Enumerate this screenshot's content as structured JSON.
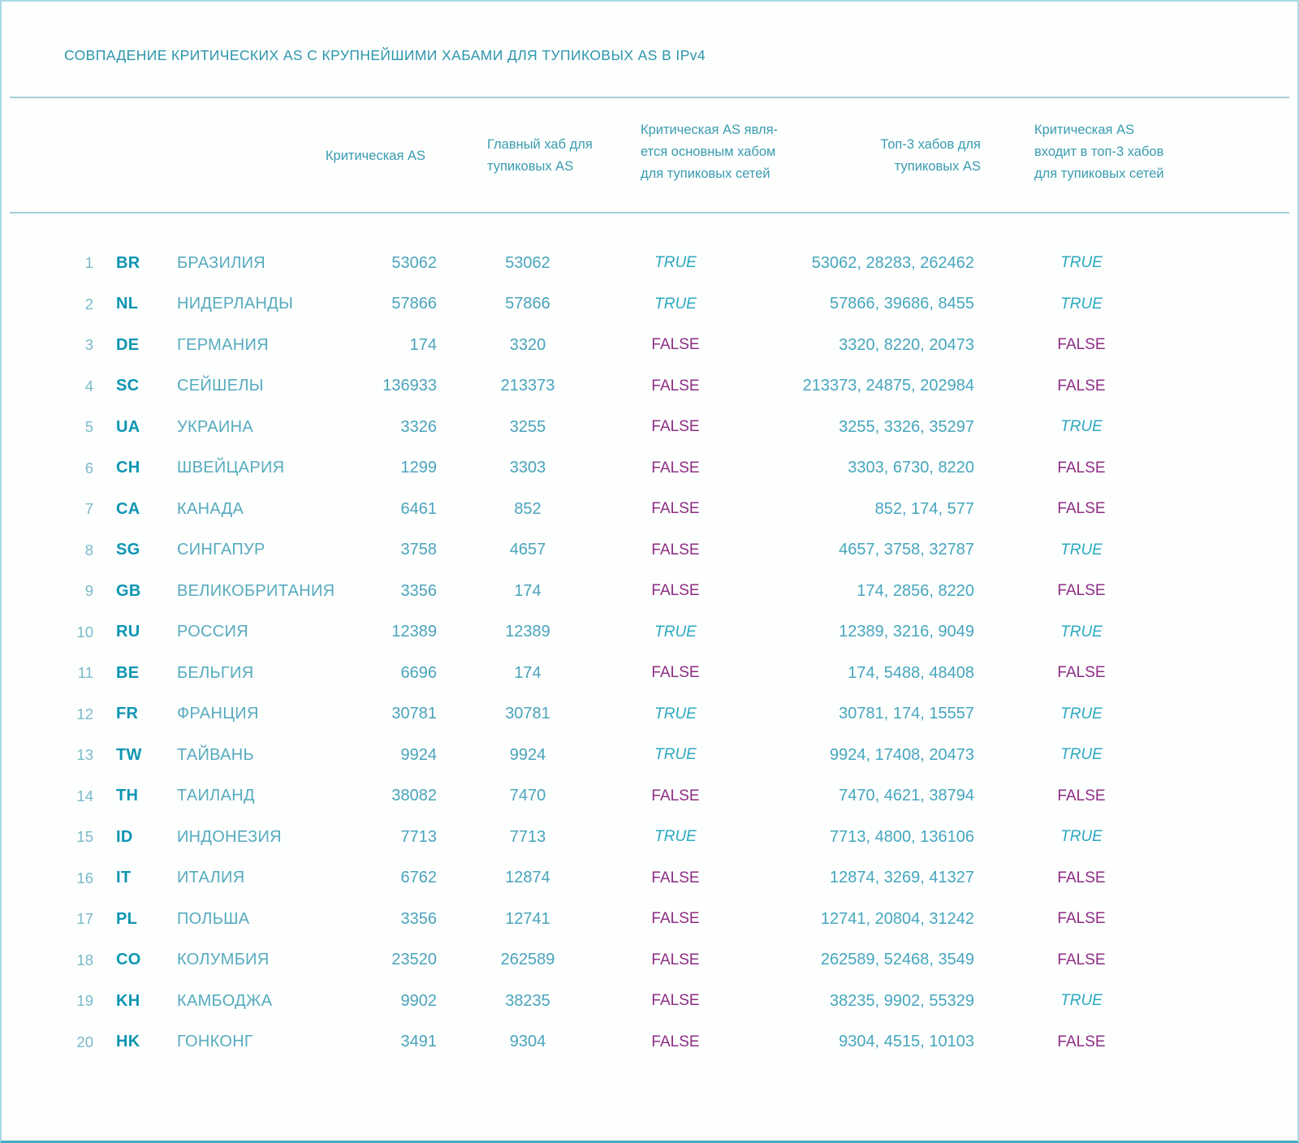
{
  "title": "СОВПАДЕНИЕ КРИТИЧЕСКИХ AS С КРУПНЕЙШИМИ ХАБАМИ ДЛЯ ТУПИКОВЫХ AS В IPv4",
  "colors": {
    "accent_teal": "#2d96ac",
    "code_teal": "#0d95b2",
    "value_teal": "#4aa4bc",
    "true_color": "#2ca9c0",
    "false_color": "#8e2d84",
    "rule_color": "#a3ccda",
    "border_color": "#a9d9e6",
    "border_bottom_color": "#43aec6"
  },
  "columns": {
    "critical_as": "Критическая AS",
    "main_hub": [
      "Главный хаб для",
      "тупиковых AS"
    ],
    "is_main_hub": [
      "Критическая AS явля-",
      "ется основным хабом",
      "для тупиковых сетей"
    ],
    "top3_hubs": [
      "Топ-3 хабов для",
      "тупиковых AS"
    ],
    "in_top3": [
      "Критическая AS",
      "входит в топ-3 хабов",
      "для тупиковых сетей"
    ]
  },
  "chart_data": {
    "type": "table",
    "title": "СОВПАДЕНИЕ КРИТИЧЕСКИХ AS С КРУПНЕЙШИМИ ХАБАМИ ДЛЯ ТУПИКОВЫХ AS В IPv4",
    "column_fields": [
      "rank",
      "country_code",
      "country_name",
      "critical_as",
      "main_hub_for_stub_as",
      "critical_as_is_main_hub",
      "top3_hubs_for_stub_as",
      "critical_as_in_top3_hubs"
    ],
    "rows": [
      [
        1,
        "BR",
        "БРАЗИЛИЯ",
        "53062",
        "53062",
        "TRUE",
        "53062, 28283, 262462",
        "TRUE"
      ],
      [
        2,
        "NL",
        "НИДЕРЛАНДЫ",
        "57866",
        "57866",
        "TRUE",
        "57866, 39686, 8455",
        "TRUE"
      ],
      [
        3,
        "DE",
        "ГЕРМАНИЯ",
        "174",
        "3320",
        "FALSE",
        "3320, 8220, 20473",
        "FALSE"
      ],
      [
        4,
        "SC",
        "СЕЙШЕЛЫ",
        "136933",
        "213373",
        "FALSE",
        "213373, 24875, 202984",
        "FALSE"
      ],
      [
        5,
        "UA",
        "УКРАИНА",
        "3326",
        "3255",
        "FALSE",
        "3255, 3326, 35297",
        "TRUE"
      ],
      [
        6,
        "CH",
        "ШВЕЙЦАРИЯ",
        "1299",
        "3303",
        "FALSE",
        "3303, 6730, 8220",
        "FALSE"
      ],
      [
        7,
        "CA",
        "КАНАДА",
        "6461",
        "852",
        "FALSE",
        "852, 174, 577",
        "FALSE"
      ],
      [
        8,
        "SG",
        "СИНГАПУР",
        "3758",
        "4657",
        "FALSE",
        "4657, 3758, 32787",
        "TRUE"
      ],
      [
        9,
        "GB",
        "ВЕЛИКОБРИТАНИЯ",
        "3356",
        "174",
        "FALSE",
        "174, 2856, 8220",
        "FALSE"
      ],
      [
        10,
        "RU",
        "РОССИЯ",
        "12389",
        "12389",
        "TRUE",
        "12389, 3216, 9049",
        "TRUE"
      ],
      [
        11,
        "BE",
        "БЕЛЬГИЯ",
        "6696",
        "174",
        "FALSE",
        "174, 5488, 48408",
        "FALSE"
      ],
      [
        12,
        "FR",
        "ФРАНЦИЯ",
        "30781",
        "30781",
        "TRUE",
        "30781, 174, 15557",
        "TRUE"
      ],
      [
        13,
        "TW",
        "ТАЙВАНЬ",
        "9924",
        "9924",
        "TRUE",
        "9924, 17408, 20473",
        "TRUE"
      ],
      [
        14,
        "TH",
        "ТАИЛАНД",
        "38082",
        "7470",
        "FALSE",
        "7470, 4621, 38794",
        "FALSE"
      ],
      [
        15,
        "ID",
        "ИНДОНЕЗИЯ",
        "7713",
        "7713",
        "TRUE",
        "7713, 4800, 136106",
        "TRUE"
      ],
      [
        16,
        "IT",
        "ИТАЛИЯ",
        "6762",
        "12874",
        "FALSE",
        "12874, 3269, 41327",
        "FALSE"
      ],
      [
        17,
        "PL",
        "ПОЛЬША",
        "3356",
        "12741",
        "FALSE",
        "12741, 20804, 31242",
        "FALSE"
      ],
      [
        18,
        "CO",
        "КОЛУМБИЯ",
        "23520",
        "262589",
        "FALSE",
        "262589, 52468, 3549",
        "FALSE"
      ],
      [
        19,
        "KH",
        "КАМБОДЖА",
        "9902",
        "38235",
        "FALSE",
        "38235, 9902, 55329",
        "TRUE"
      ],
      [
        20,
        "HK",
        "ГОНКОНГ",
        "3491",
        "9304",
        "FALSE",
        "9304, 4515, 10103",
        "FALSE"
      ]
    ]
  }
}
